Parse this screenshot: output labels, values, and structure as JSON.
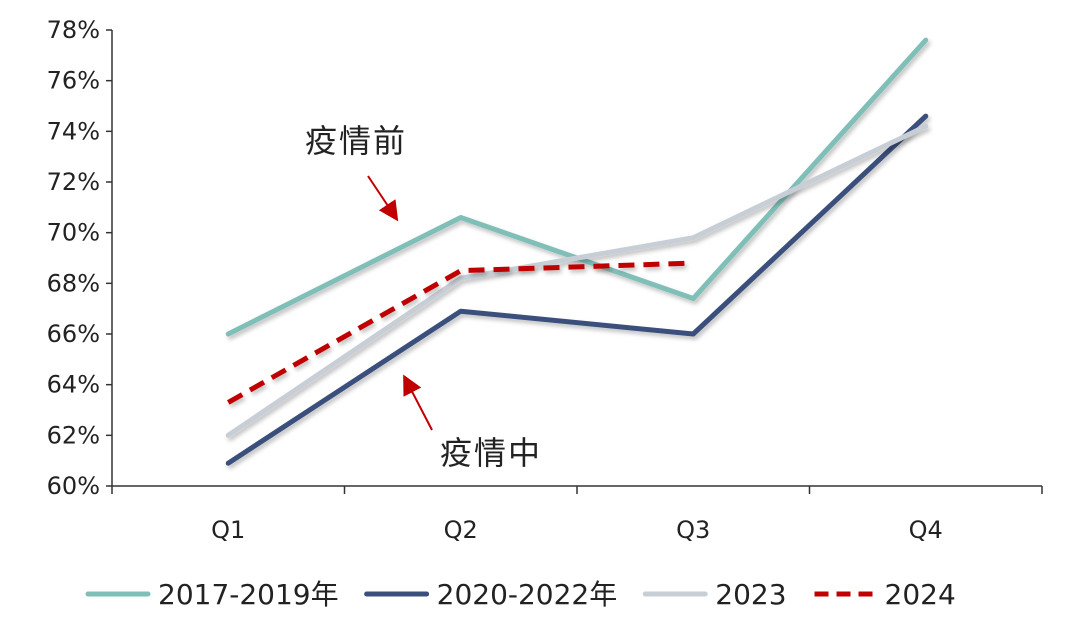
{
  "chart_data": {
    "type": "line",
    "categories": [
      "Q1",
      "Q2",
      "Q3",
      "Q4"
    ],
    "ylim": [
      60,
      78
    ],
    "y_ticks": [
      60,
      62,
      64,
      66,
      68,
      70,
      72,
      74,
      76,
      78
    ],
    "y_tick_suffix": "%",
    "grid": false,
    "legend_position": "bottom",
    "series": [
      {
        "name": "2017-2019年",
        "values": [
          66.0,
          70.6,
          67.4,
          77.6
        ],
        "color": "#7fbfb8",
        "dash": "solid"
      },
      {
        "name": "2020-2022年",
        "values": [
          60.9,
          66.9,
          66.0,
          74.6
        ],
        "color": "#3b4f7c",
        "dash": "solid"
      },
      {
        "name": "2023",
        "values": [
          62.0,
          68.2,
          69.8,
          74.2
        ],
        "color": "#c8ced6",
        "dash": "solid"
      },
      {
        "name": "2024",
        "values": [
          63.3,
          68.5,
          68.8,
          null
        ],
        "color": "#c00000",
        "dash": "dashed"
      }
    ],
    "annotations": [
      {
        "text": "疫情前",
        "target_series": "2017-2019年"
      },
      {
        "text": "疫情中",
        "target_series": "2020-2022年"
      }
    ]
  }
}
